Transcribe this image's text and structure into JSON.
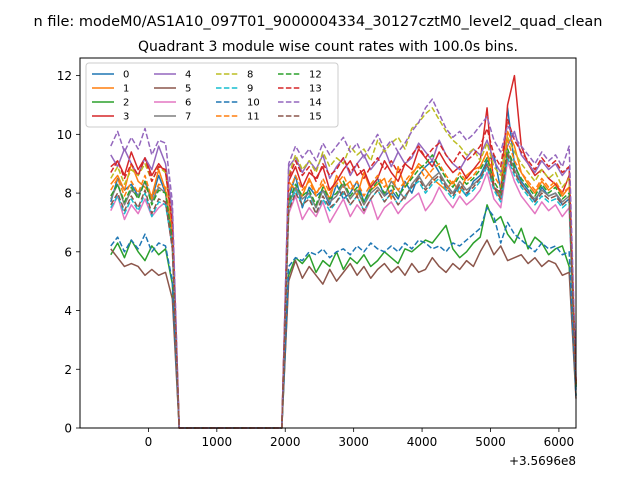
{
  "chart_data": {
    "type": "line",
    "suptitle": "n file: modeM0/AS1A10_097T01_9000004334_30127cztM0_level2_quad_clean",
    "title": "Quadrant 3 module wise count rates with 100.0s bins.",
    "xlabel": "",
    "ylabel": "",
    "x_offset_label": "+3.5696e8",
    "xlim": [
      -1000,
      6250
    ],
    "ylim": [
      0,
      12.6
    ],
    "xticks": [
      0,
      1000,
      2000,
      3000,
      4000,
      5000,
      6000
    ],
    "xtick_labels": [
      "0",
      "1000",
      "2000",
      "3000",
      "4000",
      "5000",
      "6000"
    ],
    "yticks": [
      0,
      2,
      4,
      6,
      8,
      10,
      12
    ],
    "ytick_labels": [
      "0",
      "2",
      "4",
      "6",
      "8",
      "10",
      "12"
    ],
    "grid": false,
    "legend_placement": "top-left",
    "legend_columns": 4,
    "x": [
      -550,
      -450,
      -350,
      -250,
      -150,
      -50,
      50,
      150,
      250,
      350,
      450,
      550,
      650,
      750,
      850,
      950,
      1050,
      1150,
      1250,
      1350,
      1450,
      1550,
      1650,
      1750,
      1850,
      1950,
      2050,
      2150,
      2250,
      2350,
      2450,
      2550,
      2650,
      2750,
      2850,
      2950,
      3050,
      3150,
      3250,
      3350,
      3450,
      3550,
      3650,
      3750,
      3850,
      3950,
      4050,
      4150,
      4250,
      4350,
      4450,
      4550,
      4650,
      4750,
      4850,
      4950,
      5050,
      5150,
      5250,
      5350,
      5450,
      5550,
      5650,
      5750,
      5850,
      5950,
      6050,
      6150,
      6250
    ],
    "series": [
      {
        "name": "0",
        "color": "#1f77b4",
        "dash": "solid",
        "values": [
          7.7,
          8.5,
          8.1,
          8.3,
          7.9,
          8.4,
          7.8,
          8.6,
          8.0,
          6.5,
          0,
          0,
          0,
          0,
          0,
          0,
          0,
          0,
          0,
          0,
          0,
          0,
          0,
          0,
          0,
          0,
          7.8,
          8.6,
          7.5,
          8.2,
          7.9,
          8.1,
          7.6,
          8.3,
          7.8,
          8.0,
          8.4,
          7.7,
          8.2,
          8.5,
          7.9,
          8.1,
          7.8,
          8.4,
          8.0,
          8.6,
          8.9,
          9.1,
          8.7,
          8.3,
          8.0,
          8.2,
          7.9,
          8.4,
          8.6,
          9.1,
          9.3,
          8.1,
          10.9,
          9.0,
          8.4,
          8.1,
          7.7,
          8.2,
          7.9,
          8.0,
          7.6,
          7.8,
          1.3
        ]
      },
      {
        "name": "1",
        "color": "#ff7f0e",
        "dash": "solid",
        "values": [
          8.3,
          8.6,
          8.1,
          9.0,
          8.4,
          8.2,
          7.9,
          8.8,
          8.1,
          6.6,
          0,
          0,
          0,
          0,
          0,
          0,
          0,
          0,
          0,
          0,
          0,
          0,
          0,
          0,
          0,
          0,
          8.4,
          8.1,
          7.9,
          8.5,
          8.0,
          8.3,
          7.8,
          8.6,
          8.2,
          8.4,
          7.9,
          8.7,
          8.1,
          8.3,
          8.5,
          7.8,
          8.9,
          8.2,
          8.6,
          9.0,
          8.8,
          8.5,
          8.3,
          8.1,
          8.4,
          8.0,
          8.6,
          8.8,
          8.9,
          9.4,
          8.2,
          7.8,
          10.1,
          9.6,
          8.7,
          8.3,
          8.0,
          8.4,
          8.1,
          8.3,
          7.9,
          8.2,
          1.5
        ]
      },
      {
        "name": "2",
        "color": "#2ca02c",
        "dash": "solid",
        "values": [
          5.9,
          6.3,
          5.8,
          6.4,
          6.0,
          5.7,
          6.2,
          5.9,
          6.1,
          4.9,
          0,
          0,
          0,
          0,
          0,
          0,
          0,
          0,
          0,
          0,
          0,
          0,
          0,
          0,
          0,
          0,
          5.2,
          5.8,
          5.6,
          5.9,
          5.3,
          5.7,
          5.5,
          6.0,
          5.4,
          5.8,
          5.6,
          5.9,
          5.5,
          5.7,
          6.0,
          5.8,
          5.6,
          6.1,
          6.0,
          6.2,
          6.4,
          6.3,
          6.6,
          6.9,
          6.1,
          5.8,
          6.0,
          6.3,
          6.5,
          7.6,
          7.0,
          7.2,
          6.6,
          6.3,
          6.8,
          6.1,
          6.5,
          6.3,
          5.9,
          6.1,
          6.2,
          5.5,
          1.1
        ]
      },
      {
        "name": "3",
        "color": "#d62728",
        "dash": "solid",
        "values": [
          8.9,
          9.1,
          8.6,
          9.4,
          8.8,
          9.2,
          8.6,
          9.0,
          8.7,
          6.9,
          0,
          0,
          0,
          0,
          0,
          0,
          0,
          0,
          0,
          0,
          0,
          0,
          0,
          0,
          0,
          0,
          8.4,
          8.9,
          8.2,
          8.7,
          8.5,
          8.9,
          8.1,
          8.4,
          8.8,
          9.1,
          8.6,
          8.8,
          8.2,
          8.5,
          9.1,
          8.7,
          8.4,
          9.0,
          8.8,
          9.5,
          9.2,
          8.9,
          9.4,
          9.0,
          8.7,
          8.9,
          8.5,
          8.8,
          9.1,
          10.9,
          8.2,
          8.0,
          11.0,
          12.0,
          9.6,
          9.0,
          8.6,
          8.8,
          8.5,
          8.3,
          8.0,
          8.6,
          1.5
        ]
      },
      {
        "name": "4",
        "color": "#9467bd",
        "dash": "solid",
        "values": [
          9.3,
          8.9,
          9.5,
          9.0,
          8.6,
          9.2,
          8.8,
          9.6,
          9.0,
          7.4,
          0,
          0,
          0,
          0,
          0,
          0,
          0,
          0,
          0,
          0,
          0,
          0,
          0,
          0,
          0,
          0,
          8.9,
          9.2,
          8.7,
          9.1,
          8.8,
          9.3,
          8.5,
          8.9,
          9.2,
          8.6,
          9.0,
          9.3,
          8.8,
          9.1,
          9.5,
          8.9,
          9.4,
          9.0,
          9.2,
          9.7,
          9.4,
          9.1,
          9.8,
          9.3,
          9.0,
          8.8,
          9.2,
          9.5,
          9.3,
          9.8,
          9.1,
          8.7,
          9.6,
          10.1,
          9.3,
          9.0,
          8.7,
          9.1,
          8.8,
          9.0,
          8.6,
          8.9,
          1.6
        ]
      },
      {
        "name": "5",
        "color": "#8c564b",
        "dash": "solid",
        "values": [
          6.1,
          5.8,
          5.5,
          5.6,
          5.5,
          5.2,
          5.4,
          5.2,
          5.3,
          4.4,
          0,
          0,
          0,
          0,
          0,
          0,
          0,
          0,
          0,
          0,
          0,
          0,
          0,
          0,
          0,
          0,
          5.0,
          5.7,
          5.1,
          5.5,
          5.2,
          4.9,
          5.4,
          5.0,
          5.3,
          5.6,
          5.2,
          5.5,
          5.1,
          5.4,
          5.6,
          5.3,
          5.5,
          5.2,
          5.6,
          5.3,
          5.4,
          5.8,
          5.5,
          5.3,
          5.6,
          5.4,
          5.7,
          5.5,
          6.0,
          6.4,
          5.9,
          6.2,
          5.7,
          5.8,
          5.9,
          5.6,
          5.8,
          5.5,
          5.7,
          5.6,
          5.2,
          5.3,
          1.0
        ]
      },
      {
        "name": "6",
        "color": "#e377c2",
        "dash": "solid",
        "values": [
          7.4,
          7.9,
          7.1,
          7.6,
          7.3,
          7.8,
          7.2,
          7.5,
          7.7,
          6.1,
          0,
          0,
          0,
          0,
          0,
          0,
          0,
          0,
          0,
          0,
          0,
          0,
          0,
          0,
          0,
          0,
          7.3,
          7.9,
          7.1,
          7.5,
          7.2,
          7.7,
          7.0,
          7.4,
          7.8,
          7.2,
          7.6,
          7.3,
          7.8,
          7.1,
          7.5,
          7.7,
          7.3,
          7.6,
          7.8,
          8.0,
          7.4,
          7.7,
          8.2,
          7.8,
          7.5,
          7.9,
          7.6,
          7.8,
          8.1,
          8.7,
          7.8,
          7.5,
          9.1,
          8.4,
          7.9,
          7.6,
          7.3,
          7.7,
          7.4,
          7.6,
          7.2,
          7.5,
          1.4
        ]
      },
      {
        "name": "7",
        "color": "#7f7f7f",
        "dash": "solid",
        "values": [
          7.8,
          8.3,
          7.6,
          8.1,
          7.9,
          8.4,
          7.7,
          8.2,
          8.0,
          6.4,
          0,
          0,
          0,
          0,
          0,
          0,
          0,
          0,
          0,
          0,
          0,
          0,
          0,
          0,
          0,
          0,
          7.6,
          8.2,
          7.8,
          8.0,
          7.5,
          8.1,
          7.7,
          7.9,
          8.3,
          7.8,
          8.1,
          7.6,
          8.0,
          8.2,
          7.9,
          8.4,
          8.1,
          7.8,
          8.3,
          8.6,
          8.2,
          8.5,
          8.7,
          8.3,
          8.0,
          8.4,
          8.1,
          8.3,
          8.5,
          9.0,
          8.2,
          7.9,
          9.4,
          8.8,
          8.3,
          8.0,
          7.8,
          8.1,
          7.9,
          8.0,
          7.7,
          7.9,
          1.4
        ]
      },
      {
        "name": "8",
        "color": "#bcbd22",
        "dash": "dashed",
        "values": [
          8.5,
          8.9,
          8.3,
          8.8,
          8.6,
          9.0,
          8.4,
          8.9,
          8.7,
          7.0,
          0,
          0,
          0,
          0,
          0,
          0,
          0,
          0,
          0,
          0,
          0,
          0,
          0,
          0,
          0,
          0,
          8.6,
          9.3,
          8.8,
          9.1,
          8.7,
          9.4,
          8.9,
          9.2,
          9.0,
          9.6,
          9.3,
          9.5,
          9.1,
          9.8,
          9.4,
          9.7,
          9.9,
          9.5,
          10.2,
          10.4,
          10.7,
          10.9,
          10.5,
          10.1,
          9.8,
          9.6,
          9.3,
          9.5,
          9.1,
          9.7,
          8.9,
          8.6,
          9.9,
          9.4,
          9.0,
          8.7,
          8.4,
          8.8,
          8.5,
          8.7,
          8.2,
          8.5,
          1.5
        ]
      },
      {
        "name": "9",
        "color": "#17becf",
        "dash": "dashed",
        "values": [
          7.5,
          7.9,
          7.3,
          7.8,
          7.4,
          8.0,
          7.2,
          7.7,
          7.6,
          6.2,
          0,
          0,
          0,
          0,
          0,
          0,
          0,
          0,
          0,
          0,
          0,
          0,
          0,
          0,
          0,
          0,
          7.5,
          8.1,
          7.6,
          7.9,
          7.3,
          7.8,
          7.4,
          7.7,
          8.0,
          7.6,
          7.9,
          7.4,
          7.8,
          8.1,
          7.7,
          8.0,
          7.6,
          7.9,
          8.2,
          8.4,
          8.0,
          8.3,
          8.5,
          8.1,
          7.8,
          8.2,
          7.9,
          8.1,
          8.4,
          8.9,
          8.1,
          7.7,
          9.2,
          8.6,
          8.2,
          7.9,
          7.6,
          7.9,
          7.7,
          7.8,
          7.5,
          7.7,
          1.4
        ]
      },
      {
        "name": "10",
        "color": "#1f77b4",
        "dash": "dashed",
        "values": [
          6.2,
          6.5,
          6.0,
          6.4,
          6.1,
          6.6,
          6.0,
          6.3,
          6.2,
          5.0,
          0,
          0,
          0,
          0,
          0,
          0,
          0,
          0,
          0,
          0,
          0,
          0,
          0,
          0,
          0,
          0,
          5.5,
          5.8,
          5.7,
          6.0,
          5.9,
          6.1,
          5.8,
          6.0,
          6.1,
          5.9,
          6.2,
          6.0,
          6.3,
          6.1,
          6.0,
          6.2,
          6.0,
          6.3,
          6.1,
          6.4,
          6.3,
          6.1,
          6.2,
          6.0,
          6.3,
          6.2,
          6.4,
          6.6,
          6.8,
          7.5,
          7.2,
          6.3,
          7.0,
          6.6,
          6.4,
          6.2,
          6.0,
          6.3,
          6.1,
          6.2,
          5.9,
          6.0,
          1.1
        ]
      },
      {
        "name": "11",
        "color": "#ff7f0e",
        "dash": "dashed",
        "values": [
          8.1,
          8.5,
          7.9,
          8.4,
          8.0,
          8.6,
          7.8,
          8.3,
          8.2,
          6.6,
          0,
          0,
          0,
          0,
          0,
          0,
          0,
          0,
          0,
          0,
          0,
          0,
          0,
          0,
          0,
          0,
          8.0,
          8.6,
          8.1,
          8.4,
          7.9,
          8.5,
          8.0,
          8.3,
          8.6,
          8.1,
          8.4,
          7.9,
          8.3,
          8.6,
          8.2,
          8.5,
          8.1,
          8.4,
          8.7,
          8.9,
          8.5,
          8.8,
          9.0,
          8.6,
          8.3,
          8.7,
          8.4,
          8.6,
          8.9,
          9.4,
          8.6,
          8.2,
          9.8,
          9.1,
          8.7,
          8.4,
          8.1,
          8.5,
          8.2,
          8.4,
          8.0,
          8.2,
          1.5
        ]
      },
      {
        "name": "12",
        "color": "#2ca02c",
        "dash": "dashed",
        "values": [
          7.9,
          8.3,
          7.7,
          8.2,
          7.8,
          8.4,
          7.6,
          8.1,
          8.0,
          6.4,
          0,
          0,
          0,
          0,
          0,
          0,
          0,
          0,
          0,
          0,
          0,
          0,
          0,
          0,
          0,
          0,
          7.7,
          8.3,
          7.9,
          8.1,
          7.6,
          8.2,
          7.8,
          8.0,
          8.4,
          7.9,
          8.2,
          7.7,
          8.1,
          8.4,
          8.0,
          8.3,
          7.9,
          8.2,
          8.5,
          8.8,
          9.0,
          9.3,
          8.9,
          8.5,
          8.2,
          8.6,
          8.3,
          8.5,
          8.8,
          9.2,
          8.4,
          8.0,
          9.5,
          8.9,
          8.5,
          8.2,
          7.9,
          8.3,
          8.0,
          8.2,
          7.8,
          8.0,
          1.4
        ]
      },
      {
        "name": "13",
        "color": "#d62728",
        "dash": "dashed",
        "values": [
          8.7,
          9.1,
          8.5,
          9.0,
          8.6,
          9.2,
          8.4,
          8.9,
          8.8,
          7.0,
          0,
          0,
          0,
          0,
          0,
          0,
          0,
          0,
          0,
          0,
          0,
          0,
          0,
          0,
          0,
          0,
          8.5,
          9.1,
          8.6,
          8.9,
          8.4,
          9.0,
          8.6,
          8.8,
          9.2,
          8.7,
          9.0,
          8.5,
          8.9,
          9.2,
          8.8,
          9.1,
          8.7,
          9.0,
          9.3,
          9.6,
          9.2,
          9.5,
          9.7,
          9.3,
          9.0,
          9.4,
          9.1,
          9.3,
          9.6,
          10.2,
          9.3,
          8.9,
          10.5,
          9.8,
          9.4,
          9.1,
          8.8,
          9.2,
          8.9,
          9.1,
          8.7,
          8.9,
          1.6
        ]
      },
      {
        "name": "14",
        "color": "#9467bd",
        "dash": "dashed",
        "values": [
          9.6,
          10.1,
          9.4,
          9.9,
          9.5,
          10.2,
          9.3,
          9.8,
          9.7,
          7.7,
          0,
          0,
          0,
          0,
          0,
          0,
          0,
          0,
          0,
          0,
          0,
          0,
          0,
          0,
          0,
          0,
          9.0,
          9.6,
          9.2,
          9.5,
          9.1,
          9.7,
          9.3,
          9.6,
          9.9,
          9.4,
          9.7,
          9.2,
          9.6,
          10.0,
          9.5,
          9.8,
          9.4,
          9.7,
          10.1,
          10.4,
          10.9,
          11.2,
          10.7,
          10.2,
          9.9,
          10.1,
          9.8,
          10.0,
          10.3,
          10.6,
          9.8,
          9.4,
          10.3,
          9.9,
          9.6,
          9.3,
          9.0,
          9.4,
          9.1,
          9.3,
          8.9,
          9.6,
          1.7
        ]
      },
      {
        "name": "15",
        "color": "#8c564b",
        "dash": "dashed",
        "values": [
          7.6,
          8.0,
          7.4,
          7.9,
          7.5,
          8.1,
          7.3,
          7.8,
          7.7,
          6.1,
          0,
          0,
          0,
          0,
          0,
          0,
          0,
          0,
          0,
          0,
          0,
          0,
          0,
          0,
          0,
          0,
          7.4,
          8.0,
          7.6,
          7.8,
          7.3,
          7.9,
          7.5,
          7.7,
          8.1,
          7.6,
          7.9,
          7.4,
          7.8,
          8.1,
          7.7,
          8.0,
          7.6,
          7.9,
          8.2,
          8.5,
          8.1,
          8.4,
          8.6,
          8.2,
          7.9,
          8.3,
          8.0,
          8.2,
          8.5,
          9.0,
          8.2,
          7.8,
          9.3,
          8.7,
          8.3,
          8.0,
          7.7,
          8.0,
          7.8,
          7.9,
          7.6,
          7.8,
          1.4
        ]
      }
    ]
  }
}
